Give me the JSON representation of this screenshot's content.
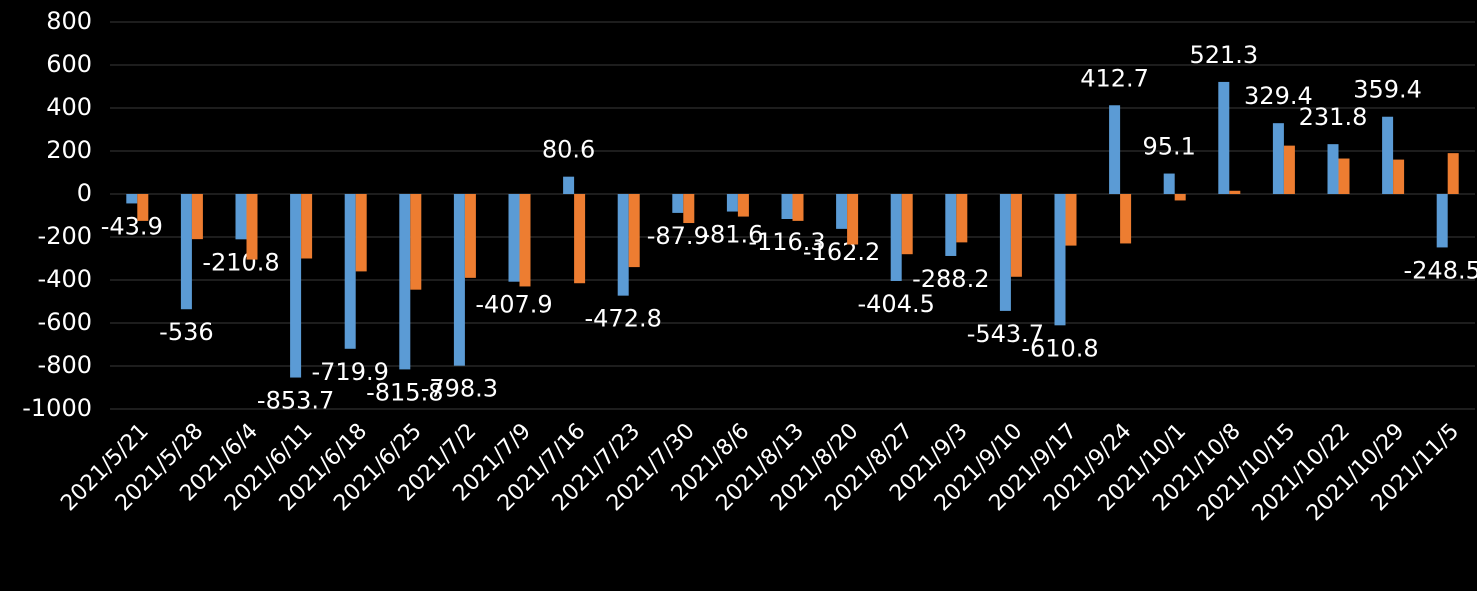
{
  "chart_data": {
    "type": "bar",
    "categories": [
      "2021/5/21",
      "2021/5/28",
      "2021/6/4",
      "2021/6/11",
      "2021/6/18",
      "2021/6/25",
      "2021/7/2",
      "2021/7/9",
      "2021/7/16",
      "2021/7/23",
      "2021/7/30",
      "2021/8/6",
      "2021/8/13",
      "2021/8/20",
      "2021/8/27",
      "2021/9/3",
      "2021/9/10",
      "2021/9/17",
      "2021/9/24",
      "2021/10/1",
      "2021/10/8",
      "2021/10/15",
      "2021/10/22",
      "2021/10/29",
      "2021/11/5"
    ],
    "series": [
      {
        "color": "#5b9bd5",
        "data_labels": true,
        "values": [
          -43.9,
          -536,
          -210.8,
          -853.7,
          -719.9,
          -815.8,
          -798.3,
          -407.9,
          80.6,
          -472.8,
          -87.9,
          -81.6,
          -116.3,
          -162.2,
          -404.5,
          -288.2,
          -543.7,
          -610.8,
          412.7,
          95.1,
          521.3,
          329.4,
          231.8,
          359.4,
          -248.5
        ]
      },
      {
        "color": "#ed7d31",
        "data_labels": false,
        "values": [
          -125,
          -210,
          -305,
          -300,
          -360,
          -445,
          -390,
          -430,
          -415,
          -340,
          -135,
          -105,
          -125,
          -235,
          -280,
          -225,
          -385,
          -240,
          -230,
          -30,
          15,
          225,
          165,
          160,
          190
        ]
      }
    ],
    "ylim": [
      -1000,
      800
    ],
    "yticks": [
      -1000,
      -800,
      -600,
      -400,
      -200,
      0,
      200,
      400,
      600,
      800
    ],
    "grid": true
  }
}
